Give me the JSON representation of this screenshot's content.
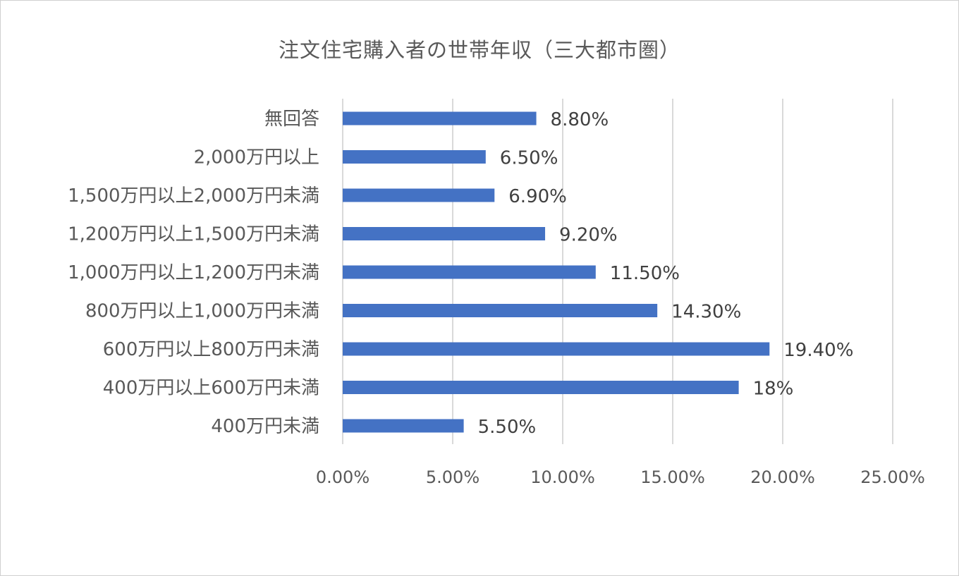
{
  "chart_data": {
    "type": "bar",
    "orientation": "horizontal",
    "title": "注文住宅購入者の世帯年収（三大都市圏）",
    "categories": [
      "無回答",
      "2,000万円以上",
      "1,500万円以上2,000万円未満",
      "1,200万円以上1,500万円未満",
      "1,000万円以上1,200万円未満",
      "800万円以上1,000万円未満",
      "600万円以上800万円未満",
      "400万円以上600万円未満",
      "400万円未満"
    ],
    "values": [
      8.8,
      6.5,
      6.9,
      9.2,
      11.5,
      14.3,
      19.4,
      18,
      5.5
    ],
    "value_labels": [
      "8.80%",
      "6.50%",
      "6.90%",
      "9.20%",
      "11.50%",
      "14.30%",
      "19.40%",
      "18%",
      "5.50%"
    ],
    "x_ticks": [
      "0.00%",
      "5.00%",
      "10.00%",
      "15.00%",
      "20.00%",
      "25.00%"
    ],
    "x_tick_values": [
      0,
      5,
      10,
      15,
      20,
      25
    ],
    "xlim": [
      0,
      25
    ],
    "grid": true,
    "legend": "none",
    "bar_color": "#4472c4",
    "grid_color": "#d9d9d9"
  }
}
